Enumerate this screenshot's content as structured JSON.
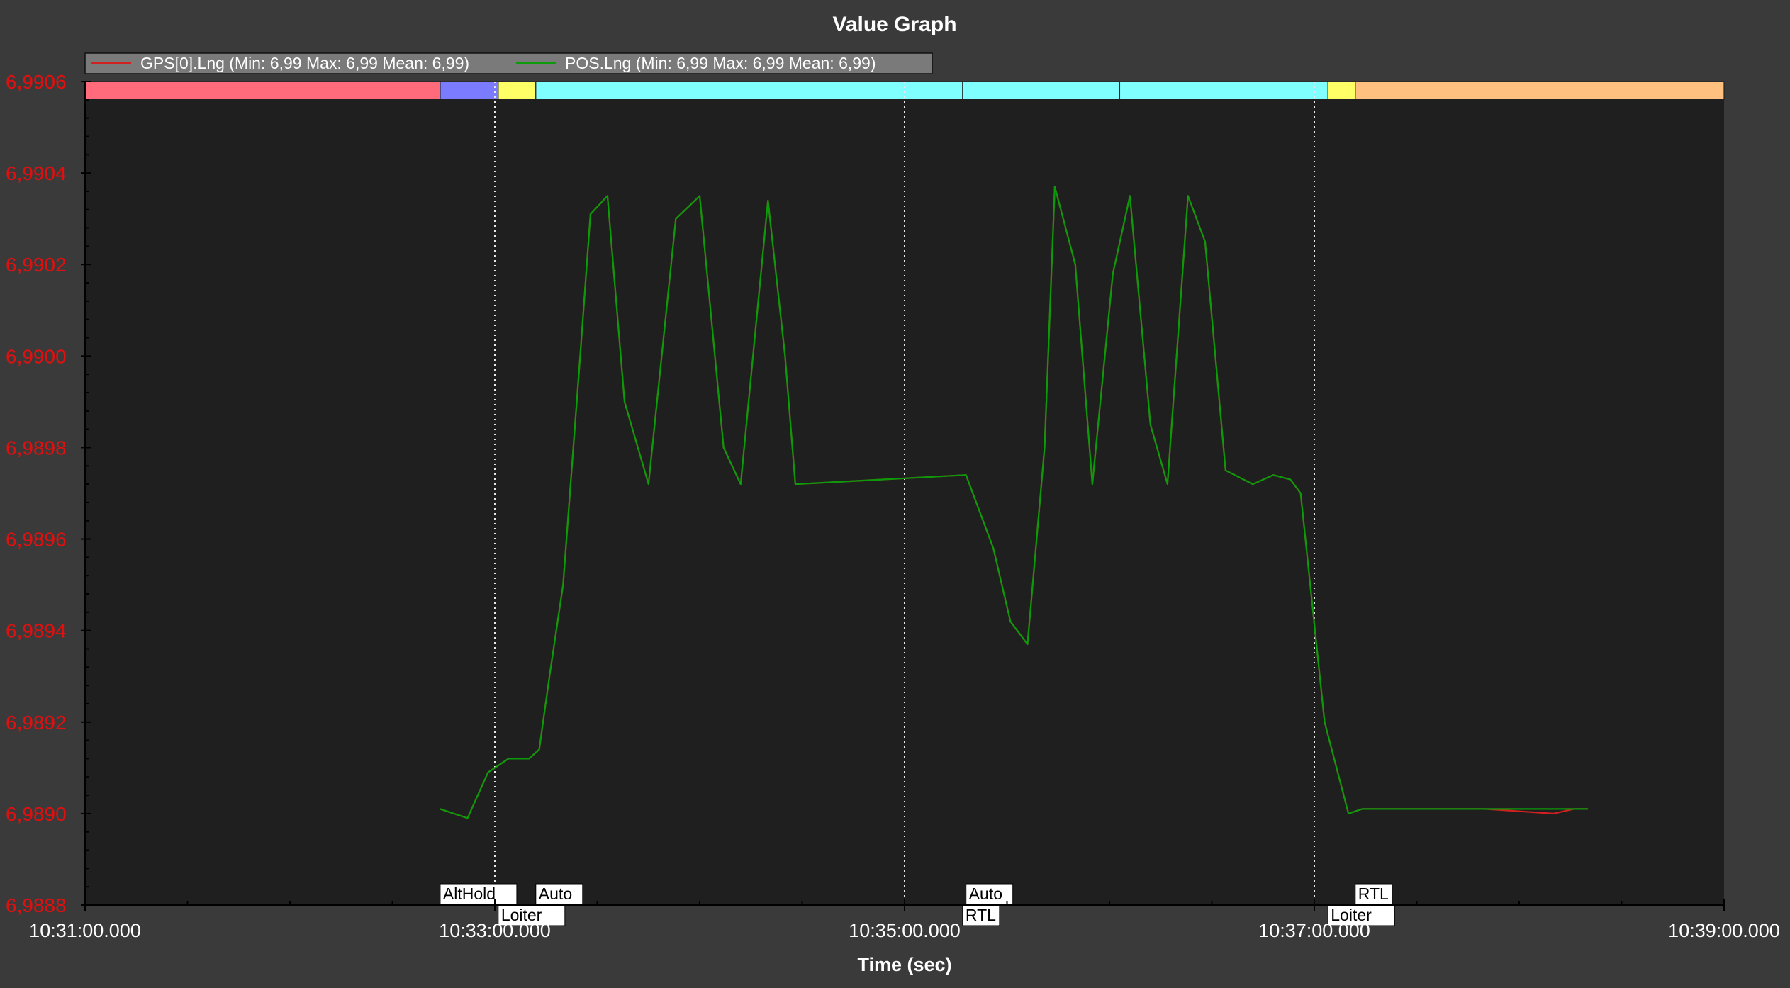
{
  "colors": {
    "background": "#3a3a3a",
    "plot_background": "#1f1f1f",
    "axis_label_color": "#e01010",
    "text_color": "#ffffff",
    "gps_series": "#d02020",
    "pos_series": "#0a9a0a",
    "legend_bg": "#7a7a7a"
  },
  "chart_data": {
    "type": "line",
    "title": "Value Graph",
    "xlabel": "Time (sec)",
    "ylabel": "",
    "x_unit": "time",
    "xlim": [
      "10:31:00.000",
      "10:39:00.000"
    ],
    "ylim": [
      6.9888,
      6.9906
    ],
    "x_ticks": [
      "10:31:00.000",
      "10:33:00.000",
      "10:35:00.000",
      "10:37:00.000",
      "10:39:00.000"
    ],
    "y_ticks": [
      "6,9888",
      "6,9890",
      "6,9892",
      "6,9894",
      "6,9896",
      "6,9898",
      "6,9900",
      "6,9902",
      "6,9904",
      "6,9906"
    ],
    "grid": "vertical dotted at major x ticks",
    "legend_position": "top-left",
    "legend": [
      "GPS[0].Lng  (Min: 6,99 Max: 6,99 Mean: 6,99)",
      "POS.Lng  (Min: 6,99 Max: 6,99 Mean: 6,99)"
    ],
    "mode_bands": [
      {
        "start": "10:31:00",
        "end": "10:32:44",
        "color": "#ff6b7a"
      },
      {
        "start": "10:32:44",
        "end": "10:33:01",
        "color": "#7b7bff"
      },
      {
        "start": "10:33:01",
        "end": "10:33:12",
        "color": "#ffff66"
      },
      {
        "start": "10:33:12",
        "end": "10:35:17",
        "color": "#7fffff"
      },
      {
        "start": "10:35:17",
        "end": "10:36:03",
        "color": "#7fffff"
      },
      {
        "start": "10:36:03",
        "end": "10:37:04",
        "color": "#7fffff"
      },
      {
        "start": "10:37:04",
        "end": "10:37:12",
        "color": "#ffff66"
      },
      {
        "start": "10:37:12",
        "end": "10:39:00",
        "color": "#ffc080"
      }
    ],
    "mode_labels": [
      {
        "text": "AltHold",
        "time": "10:32:44",
        "row": 1
      },
      {
        "text": "Loiter",
        "time": "10:33:01",
        "row": 2
      },
      {
        "text": "Auto",
        "time": "10:33:12",
        "row": 1
      },
      {
        "text": "Auto",
        "time": "10:35:18",
        "row": 1
      },
      {
        "text": "RTL",
        "time": "10:35:17",
        "row": 2
      },
      {
        "text": "RTL",
        "time": "10:37:12",
        "row": 1
      },
      {
        "text": "Loiter",
        "time": "10:37:04",
        "row": 2
      }
    ],
    "series": [
      {
        "name": "GPS[0].Lng",
        "x": [
          "10:32:44",
          "10:32:52",
          "10:32:58",
          "10:33:04",
          "10:33:10",
          "10:33:13",
          "10:33:16",
          "10:33:20",
          "10:33:25",
          "10:33:28",
          "10:33:33",
          "10:33:38",
          "10:33:45",
          "10:33:53",
          "10:34:00",
          "10:34:07",
          "10:34:12",
          "10:34:20",
          "10:34:25",
          "10:34:28",
          "10:35:18",
          "10:35:26",
          "10:35:31",
          "10:35:36",
          "10:35:41",
          "10:35:44",
          "10:35:50",
          "10:35:55",
          "10:36:01",
          "10:36:06",
          "10:36:12",
          "10:36:17",
          "10:36:23",
          "10:36:28",
          "10:36:34",
          "10:36:42",
          "10:36:48",
          "10:36:53",
          "10:36:56",
          "10:37:03",
          "10:37:10",
          "10:37:14",
          "10:37:19",
          "10:37:24",
          "10:37:28",
          "10:37:50",
          "10:38:10",
          "10:38:16",
          "10:38:20"
        ],
        "y": [
          6.98901,
          6.98899,
          6.98909,
          6.98912,
          6.98912,
          6.98914,
          6.9893,
          6.9895,
          6.99,
          6.99031,
          6.99035,
          6.9899,
          6.98972,
          6.9903,
          6.99035,
          6.9898,
          6.98972,
          6.99034,
          6.99,
          6.98972,
          6.98974,
          6.98958,
          6.98942,
          6.98937,
          6.9898,
          6.99037,
          6.9902,
          6.98972,
          6.99018,
          6.99035,
          6.98985,
          6.98972,
          6.99035,
          6.99025,
          6.98975,
          6.98972,
          6.98974,
          6.98973,
          6.9897,
          6.9892,
          6.989,
          6.98901,
          6.98901,
          6.98901,
          6.98901,
          6.98901,
          6.989,
          6.98901,
          6.98901
        ]
      },
      {
        "name": "POS.Lng",
        "x": [
          "10:32:44",
          "10:32:52",
          "10:32:58",
          "10:33:04",
          "10:33:10",
          "10:33:13",
          "10:33:16",
          "10:33:20",
          "10:33:25",
          "10:33:28",
          "10:33:33",
          "10:33:38",
          "10:33:45",
          "10:33:53",
          "10:34:00",
          "10:34:07",
          "10:34:12",
          "10:34:20",
          "10:34:25",
          "10:34:28",
          "10:35:18",
          "10:35:26",
          "10:35:31",
          "10:35:36",
          "10:35:41",
          "10:35:44",
          "10:35:50",
          "10:35:55",
          "10:36:01",
          "10:36:06",
          "10:36:12",
          "10:36:17",
          "10:36:23",
          "10:36:28",
          "10:36:34",
          "10:36:42",
          "10:36:48",
          "10:36:53",
          "10:36:56",
          "10:37:03",
          "10:37:10",
          "10:37:14",
          "10:37:19",
          "10:37:24",
          "10:37:28",
          "10:37:50",
          "10:38:10",
          "10:38:16",
          "10:38:20"
        ],
        "y": [
          6.98901,
          6.98899,
          6.98909,
          6.98912,
          6.98912,
          6.98914,
          6.9893,
          6.9895,
          6.99,
          6.99031,
          6.99035,
          6.9899,
          6.98972,
          6.9903,
          6.99035,
          6.9898,
          6.98972,
          6.99034,
          6.99,
          6.98972,
          6.98974,
          6.98958,
          6.98942,
          6.98937,
          6.9898,
          6.99037,
          6.9902,
          6.98972,
          6.99018,
          6.99035,
          6.98985,
          6.98972,
          6.99035,
          6.99025,
          6.98975,
          6.98972,
          6.98974,
          6.98973,
          6.9897,
          6.9892,
          6.989,
          6.98901,
          6.98901,
          6.98901,
          6.98901,
          6.98901,
          6.98901,
          6.98901,
          6.98901
        ]
      }
    ]
  }
}
